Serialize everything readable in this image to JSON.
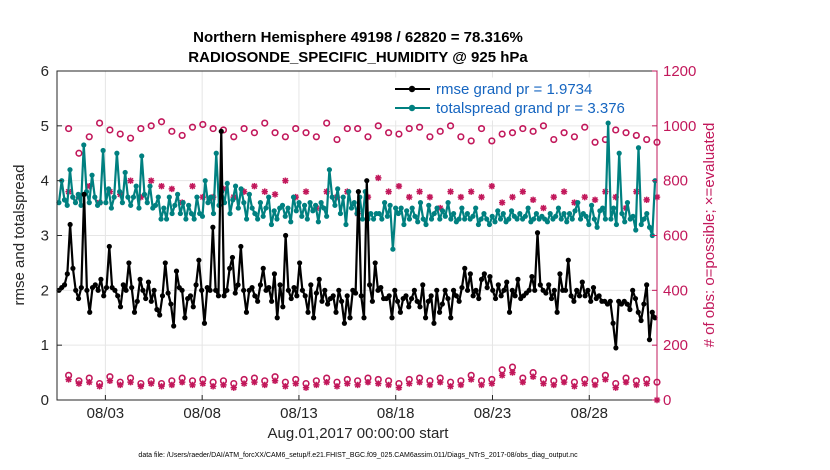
{
  "chart_data": {
    "type": "line",
    "title_line1": "Northern Hemisphere 49198 / 62820 = 78.316%",
    "title_line2": "RADIOSONDE_SPECIFIC_HUMIDITY @ 925 hPa",
    "ylabel_left": "rmse and totalspread",
    "ylabel_right": "# of obs: o=possible; ×=evaluated",
    "xlabel": "Aug.01,2017 00:00:00 start",
    "footnote": "data file: /Users/raeder/DAI/ATM_forcXX/CAM6_setup/f.e21.FHIST_BGC.f09_025.CAM6assim.011/Diags_NTrS_2017-08/obs_diag_output.nc",
    "x_range": [
      0.5,
      31.5
    ],
    "ylim_left": [
      0,
      6
    ],
    "ylim_right": [
      0,
      1200
    ],
    "yticks_left": [
      "0",
      "1",
      "2",
      "3",
      "4",
      "5",
      "6"
    ],
    "yticks_right": [
      "0",
      "200",
      "400",
      "600",
      "800",
      "1000",
      "1200"
    ],
    "xticks": [
      {
        "value": 3,
        "label": "08/03"
      },
      {
        "value": 8,
        "label": "08/08"
      },
      {
        "value": 13,
        "label": "08/13"
      },
      {
        "value": 18,
        "label": "08/18"
      },
      {
        "value": 23,
        "label": "08/23"
      },
      {
        "value": 28,
        "label": "08/28"
      }
    ],
    "legend": {
      "rmse": "rmse grand pr = 1.9734",
      "spread": "totalspread grand pr = 3.376"
    },
    "colors": {
      "rmse": "#000000",
      "spread": "#008080",
      "obs": "#c2185b",
      "legend_text": "#1565c0"
    },
    "series_rmse": {
      "name": "rmse",
      "values": [
        2.0,
        2.05,
        2.1,
        2.3,
        3.2,
        2.4,
        2.0,
        1.85,
        2.05,
        3.75,
        2.0,
        1.6,
        2.05,
        2.1,
        2.0,
        2.2,
        1.9,
        2.05,
        2.8,
        2.05,
        2.0,
        1.9,
        1.7,
        2.1,
        2.0,
        2.5,
        2.05,
        1.6,
        1.8,
        2.2,
        2.0,
        1.85,
        2.15,
        1.8,
        2.0,
        1.65,
        1.55,
        1.9,
        2.5,
        1.95,
        1.75,
        1.35,
        2.35,
        2.05,
        2.0,
        1.5,
        1.85,
        1.9,
        1.7,
        2.1,
        2.55,
        2.0,
        1.4,
        2.05,
        2.0,
        3.15,
        2.0,
        1.9,
        4.9,
        1.9,
        2.0,
        2.4,
        2.6,
        1.95,
        2.1,
        2.8,
        2.0,
        1.6,
        2.0,
        2.05,
        1.9,
        1.8,
        2.1,
        2.4,
        2.0,
        2.05,
        1.8,
        2.3,
        1.5,
        2.1,
        1.7,
        3.0,
        2.0,
        1.85,
        2.05,
        1.9,
        2.5,
        2.0,
        1.9,
        1.6,
        2.1,
        1.5,
        1.95,
        2.2,
        1.8,
        2.0,
        1.75,
        1.85,
        1.9,
        1.6,
        2.0,
        1.8,
        1.4,
        1.9,
        1.5,
        2.0,
        1.95,
        3.8,
        1.9,
        1.5,
        4.0,
        2.1,
        1.8,
        2.5,
        2.0,
        2.05,
        1.85,
        1.85,
        1.9,
        1.5,
        2.0,
        1.8,
        1.6,
        1.85,
        1.9,
        1.7,
        1.85,
        2.0,
        1.8,
        1.7,
        2.1,
        1.5,
        1.8,
        1.9,
        1.4,
        2.0,
        1.6,
        1.75,
        2.0,
        1.85,
        1.5,
        2.0,
        1.9,
        1.8,
        2.05,
        2.4,
        2.0,
        2.3,
        1.9,
        2.0,
        1.85,
        2.2,
        2.3,
        2.05,
        2.25,
        2.0,
        1.85,
        2.1,
        1.9,
        2.0,
        2.15,
        1.6,
        2.0,
        1.9,
        2.2,
        1.85,
        1.9,
        1.95,
        2.0,
        2.25,
        2.0,
        3.05,
        2.1,
        2.0,
        1.95,
        2.1,
        1.85,
        2.0,
        1.6,
        2.3,
        2.0,
        2.0,
        2.55,
        1.9,
        1.8,
        2.0,
        1.9,
        2.15,
        1.9,
        2.0,
        1.8,
        2.05,
        1.85,
        1.9,
        1.8,
        1.8,
        1.75,
        1.8,
        1.4,
        0.95,
        1.8,
        1.75,
        1.8,
        1.75,
        1.65,
        2.0,
        1.85,
        1.6,
        1.45,
        1.75,
        2.1,
        1.1,
        1.6,
        1.5
      ]
    },
    "series_spread": {
      "name": "totalspread",
      "values": [
        3.6,
        4.0,
        3.65,
        3.55,
        4.2,
        3.7,
        3.6,
        3.75,
        3.55,
        4.65,
        3.8,
        3.6,
        4.1,
        3.7,
        3.55,
        3.6,
        4.55,
        3.6,
        3.85,
        3.5,
        3.7,
        4.5,
        3.8,
        3.6,
        4.15,
        3.7,
        3.55,
        3.7,
        3.9,
        3.5,
        4.45,
        3.75,
        3.6,
        3.9,
        3.5,
        3.55,
        3.7,
        3.3,
        3.5,
        3.3,
        3.7,
        3.4,
        3.55,
        3.75,
        3.4,
        3.6,
        3.3,
        3.55,
        3.4,
        3.3,
        3.7,
        3.4,
        3.35,
        4.0,
        3.6,
        3.7,
        3.4,
        4.5,
        3.55,
        3.8,
        3.6,
        3.95,
        3.4,
        3.65,
        3.9,
        3.5,
        3.85,
        3.6,
        3.3,
        3.75,
        3.5,
        3.4,
        3.3,
        3.6,
        3.35,
        3.5,
        3.7,
        3.2,
        3.45,
        3.3,
        3.5,
        3.55,
        3.35,
        3.5,
        3.25,
        3.7,
        3.45,
        3.6,
        3.35,
        3.55,
        3.3,
        3.6,
        3.45,
        3.55,
        3.25,
        3.6,
        3.5,
        3.35,
        4.2,
        3.7,
        3.55,
        3.85,
        3.4,
        3.7,
        3.2,
        3.8,
        3.5,
        3.6,
        3.4,
        3.7,
        3.3,
        3.8,
        3.3,
        3.4,
        3.3,
        3.4,
        3.4,
        3.3,
        3.6,
        3.35,
        3.55,
        2.75,
        3.5,
        3.4,
        3.5,
        3.2,
        3.45,
        3.3,
        3.5,
        3.35,
        3.25,
        3.6,
        3.3,
        3.2,
        3.55,
        3.3,
        3.4,
        3.5,
        3.3,
        3.45,
        3.35,
        3.6,
        3.3,
        3.4,
        3.25,
        3.3,
        3.5,
        3.3,
        3.4,
        3.3,
        3.35,
        3.5,
        3.2,
        3.3,
        3.4,
        3.3,
        3.2,
        3.35,
        3.25,
        3.45,
        3.3,
        3.4,
        3.25,
        3.3,
        3.45,
        3.35,
        3.3,
        3.4,
        3.3,
        3.35,
        3.5,
        3.25,
        3.3,
        3.4,
        3.3,
        3.35,
        3.3,
        3.25,
        3.4,
        3.3,
        3.35,
        3.5,
        3.3,
        3.4,
        3.25,
        3.4,
        3.3,
        3.45,
        3.6,
        3.3,
        3.4,
        3.35,
        3.2,
        3.55,
        3.3,
        3.15,
        3.45,
        3.5,
        3.3,
        5.05,
        3.3,
        3.5,
        3.2,
        4.5,
        3.4,
        3.25,
        3.6,
        3.3,
        3.35,
        3.1,
        4.6,
        3.2,
        3.3,
        3.4,
        3.15,
        3.0,
        4.0
      ]
    },
    "obs_possible": {
      "name": "possible",
      "values": [
        990,
        900,
        960,
        1010,
        985,
        970,
        955,
        990,
        1000,
        1015,
        980,
        965,
        995,
        1005,
        990,
        985,
        960,
        990,
        975,
        1010,
        975,
        960,
        990,
        975,
        960,
        1010,
        950,
        990,
        990,
        960,
        1000,
        975,
        970,
        990,
        995,
        960,
        980,
        1000,
        960,
        945,
        990,
        945,
        970,
        975,
        990,
        980,
        1000,
        950,
        975,
        960,
        995,
        940,
        950,
        985,
        975,
        965,
        950,
        940
      ]
    },
    "obs_evaluated": {
      "name": "evaluated",
      "values": [
        760,
        740,
        780,
        720,
        760,
        750,
        800,
        740,
        800,
        780,
        770,
        720,
        780,
        740,
        740,
        770,
        740,
        760,
        780,
        760,
        750,
        800,
        740,
        760,
        700,
        760,
        740,
        760,
        680,
        740,
        810,
        760,
        780,
        740,
        760,
        740,
        700,
        760,
        740,
        760,
        740,
        780,
        720,
        740,
        760,
        730,
        700,
        740,
        760,
        720,
        740,
        730,
        760,
        740,
        700,
        760,
        730,
        740
      ]
    },
    "obs_possible_low": {
      "name": "possible (low)",
      "values": [
        90,
        70,
        80,
        60,
        85,
        65,
        80,
        60,
        70,
        60,
        70,
        80,
        70,
        75,
        65,
        70,
        60,
        75,
        80,
        70,
        85,
        65,
        75,
        60,
        70,
        80,
        65,
        75,
        70,
        80,
        75,
        70,
        60,
        75,
        80,
        70,
        80,
        65,
        70,
        90,
        70,
        75,
        110,
        120,
        80,
        100,
        75,
        70,
        80,
        65,
        75,
        70,
        90,
        60,
        80,
        70,
        75,
        65
      ]
    },
    "obs_evaluated_low": {
      "name": "evaluated (low)",
      "values": [
        75,
        60,
        65,
        50,
        70,
        55,
        65,
        50,
        60,
        50,
        55,
        65,
        55,
        60,
        50,
        55,
        45,
        60,
        65,
        55,
        70,
        50,
        60,
        45,
        55,
        65,
        50,
        60,
        55,
        65,
        60,
        55,
        45,
        60,
        65,
        55,
        65,
        50,
        55,
        75,
        55,
        60,
        90,
        100,
        65,
        85,
        60,
        55,
        65,
        50,
        60,
        55,
        75,
        45,
        65,
        55,
        60,
        0
      ]
    }
  }
}
